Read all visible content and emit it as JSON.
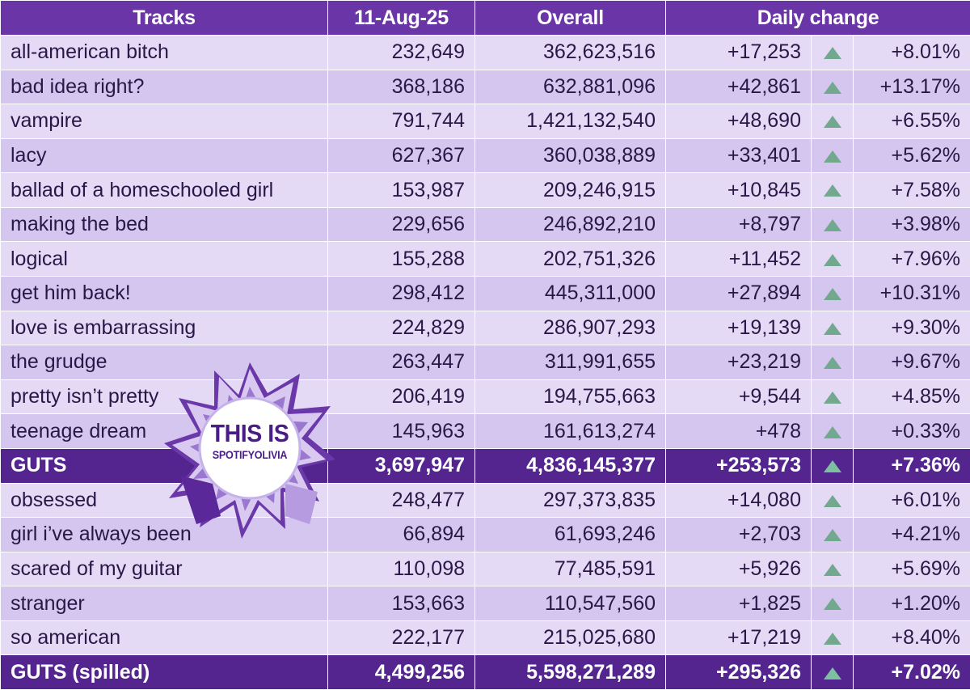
{
  "header": {
    "tracks": "Tracks",
    "date": "11-Aug-25",
    "overall": "Overall",
    "daily_change": "Daily change"
  },
  "colors": {
    "header_bg": "#6a35a6",
    "album_row_bg": "#54258f",
    "row_light": "#e4daf5",
    "row_dark": "#d4c6ee",
    "up_arrow": "#72a88d"
  },
  "rows": [
    {
      "name": "all-american bitch",
      "daily": "232,649",
      "overall": "362,623,516",
      "change": "+17,253",
      "pct": "+8.01%",
      "album": false
    },
    {
      "name": "bad idea right?",
      "daily": "368,186",
      "overall": "632,881,096",
      "change": "+42,861",
      "pct": "+13.17%",
      "album": false
    },
    {
      "name": "vampire",
      "daily": "791,744",
      "overall": "1,421,132,540",
      "change": "+48,690",
      "pct": "+6.55%",
      "album": false
    },
    {
      "name": "lacy",
      "daily": "627,367",
      "overall": "360,038,889",
      "change": "+33,401",
      "pct": "+5.62%",
      "album": false
    },
    {
      "name": "ballad of a homeschooled girl",
      "daily": "153,987",
      "overall": "209,246,915",
      "change": "+10,845",
      "pct": "+7.58%",
      "album": false
    },
    {
      "name": "making the bed",
      "daily": "229,656",
      "overall": "246,892,210",
      "change": "+8,797",
      "pct": "+3.98%",
      "album": false
    },
    {
      "name": "logical",
      "daily": "155,288",
      "overall": "202,751,326",
      "change": "+11,452",
      "pct": "+7.96%",
      "album": false
    },
    {
      "name": "get him back!",
      "daily": "298,412",
      "overall": "445,311,000",
      "change": "+27,894",
      "pct": "+10.31%",
      "album": false
    },
    {
      "name": "love is embarrassing",
      "daily": "224,829",
      "overall": "286,907,293",
      "change": "+19,139",
      "pct": "+9.30%",
      "album": false
    },
    {
      "name": "the grudge",
      "daily": "263,447",
      "overall": "311,991,655",
      "change": "+23,219",
      "pct": "+9.67%",
      "album": false
    },
    {
      "name": "pretty isn’t pretty",
      "daily": "206,419",
      "overall": "194,755,663",
      "change": "+9,544",
      "pct": "+4.85%",
      "album": false
    },
    {
      "name": "teenage dream",
      "daily": "145,963",
      "overall": "161,613,274",
      "change": "+478",
      "pct": "+0.33%",
      "album": false
    },
    {
      "name": "GUTS",
      "daily": "3,697,947",
      "overall": "4,836,145,377",
      "change": "+253,573",
      "pct": "+7.36%",
      "album": true
    },
    {
      "name": "obsessed",
      "daily": "248,477",
      "overall": "297,373,835",
      "change": "+14,080",
      "pct": "+6.01%",
      "album": false
    },
    {
      "name": "girl i’ve always been",
      "daily": "66,894",
      "overall": "61,693,246",
      "change": "+2,703",
      "pct": "+4.21%",
      "album": false
    },
    {
      "name": "scared of my guitar",
      "daily": "110,098",
      "overall": "77,485,591",
      "change": "+5,926",
      "pct": "+5.69%",
      "album": false
    },
    {
      "name": "stranger",
      "daily": "153,663",
      "overall": "110,547,560",
      "change": "+1,825",
      "pct": "+1.20%",
      "album": false
    },
    {
      "name": "so american",
      "daily": "222,177",
      "overall": "215,025,680",
      "change": "+17,219",
      "pct": "+8.40%",
      "album": false
    },
    {
      "name": "GUTS (spilled)",
      "daily": "4,499,256",
      "overall": "5,598,271,289",
      "change": "+295,326",
      "pct": "+7.02%",
      "album": true
    }
  ],
  "logo": {
    "line1": "THIS IS",
    "line2": "SPOTIFYOLIVIA",
    "icon": "paper-burst-logo"
  }
}
